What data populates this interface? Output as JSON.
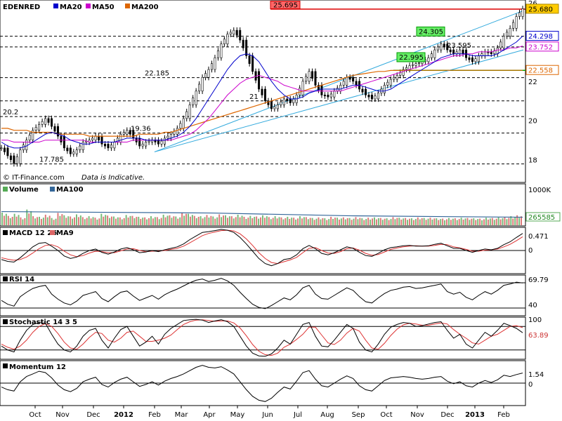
{
  "chart_data": {
    "type": "line",
    "symbol": "EDENRED",
    "legend": [
      {
        "label": "MA20",
        "color": "#0000cc"
      },
      {
        "label": "MA50",
        "color": "#cc00cc"
      },
      {
        "label": "MA200",
        "color": "#dd6600"
      }
    ],
    "source_text": "© IT-Finance.com",
    "disclaimer": "Data is Indicative.",
    "x_labels": [
      "Oct",
      "Nov",
      "Dec",
      "2012",
      "Feb",
      "Mar",
      "Apr",
      "May",
      "Jun",
      "Jul",
      "Aug",
      "Sep",
      "Oct",
      "Nov",
      "Dec",
      "2013",
      "Feb"
    ],
    "price": {
      "ylim": [
        17.2,
        26.0
      ],
      "y_ticks": [
        {
          "label": "26",
          "value": 26
        },
        {
          "label": "22",
          "value": 22
        },
        {
          "label": "20",
          "value": 20
        },
        {
          "label": "18",
          "value": 18
        }
      ],
      "close_series": [
        18.6,
        18.2,
        17.8,
        18.5,
        19.0,
        19.5,
        19.8,
        20.1,
        19.7,
        19.2,
        18.6,
        18.3,
        18.5,
        18.9,
        19.0,
        19.2,
        18.8,
        18.6,
        18.9,
        19.3,
        19.5,
        19.1,
        18.7,
        18.9,
        19.0,
        18.8,
        19.1,
        19.3,
        19.6,
        20.1,
        20.8,
        21.5,
        22.2,
        22.6,
        23.2,
        23.9,
        24.4,
        24.6,
        24.1,
        23.3,
        22.5,
        21.6,
        21.0,
        20.6,
        20.8,
        21.1,
        20.9,
        21.3,
        22.0,
        22.5,
        21.8,
        21.3,
        21.2,
        21.5,
        21.8,
        22.2,
        22.0,
        21.6,
        21.3,
        21.1,
        21.4,
        21.8,
        22.1,
        22.3,
        22.6,
        22.8,
        22.9,
        23.0,
        23.2,
        23.6,
        23.9,
        23.6,
        23.4,
        23.6,
        23.2,
        23.0,
        23.3,
        23.5,
        23.4,
        23.7,
        24.3,
        24.7,
        25.3,
        25.7
      ],
      "ma20_series": [
        18.9,
        18.7,
        18.6,
        18.6,
        18.7,
        18.9,
        19.1,
        19.3,
        19.4,
        19.3,
        19.2,
        19.0,
        18.9,
        18.8,
        18.8,
        18.9,
        18.9,
        18.9,
        18.9,
        19.0,
        19.1,
        19.1,
        19.1,
        19.0,
        19.0,
        19.0,
        19.0,
        19.1,
        19.2,
        19.4,
        19.7,
        20.1,
        20.6,
        21.1,
        21.6,
        22.1,
        22.6,
        23.0,
        23.3,
        23.4,
        23.3,
        23.0,
        22.5,
        22.0,
        21.6,
        21.3,
        21.1,
        21.1,
        21.2,
        21.4,
        21.5,
        21.6,
        21.6,
        21.6,
        21.6,
        21.7,
        21.8,
        21.8,
        21.7,
        21.6,
        21.5,
        21.5,
        21.6,
        21.8,
        22.0,
        22.2,
        22.4,
        22.6,
        22.8,
        23.0,
        23.2,
        23.3,
        23.4,
        23.4,
        23.4,
        23.3,
        23.3,
        23.3,
        23.3,
        23.4,
        23.6,
        23.8,
        24.0,
        24.3
      ],
      "ma50_series": [
        19.0,
        19.0,
        18.9,
        18.9,
        18.9,
        18.9,
        18.9,
        19.0,
        19.0,
        19.0,
        19.0,
        19.0,
        19.0,
        19.0,
        18.9,
        18.9,
        18.9,
        18.9,
        18.9,
        18.9,
        18.9,
        19.0,
        19.0,
        19.0,
        19.0,
        19.0,
        19.0,
        19.0,
        19.1,
        19.2,
        19.3,
        19.5,
        19.8,
        20.1,
        20.5,
        20.9,
        21.3,
        21.6,
        21.9,
        22.1,
        22.2,
        22.3,
        22.2,
        22.1,
        22.0,
        21.8,
        21.7,
        21.6,
        21.5,
        21.5,
        21.5,
        21.5,
        21.5,
        21.5,
        21.5,
        21.6,
        21.7,
        21.8,
        21.9,
        22.0,
        22.1,
        22.2,
        22.3,
        22.4,
        22.5,
        22.6,
        22.7,
        22.8,
        22.9,
        23.0,
        23.1,
        23.2,
        23.3,
        23.3,
        23.4,
        23.4,
        23.5,
        23.5,
        23.5,
        23.6,
        23.6,
        23.7,
        23.7,
        23.8
      ],
      "ma200_series": [
        19.6,
        19.6,
        19.5,
        19.5,
        19.5,
        19.4,
        19.4,
        19.4,
        19.4,
        19.3,
        19.3,
        19.3,
        19.3,
        19.3,
        19.2,
        19.2,
        19.2,
        19.2,
        19.2,
        19.2,
        19.2,
        19.2,
        19.3,
        19.3,
        19.3,
        19.3,
        19.4,
        19.4,
        19.5,
        19.6,
        19.7,
        19.8,
        19.9,
        20.0,
        20.1,
        20.2,
        20.3,
        20.4,
        20.5,
        20.6,
        20.7,
        20.8,
        20.9,
        21.0,
        21.1,
        21.2,
        21.3,
        21.4,
        21.5,
        21.6,
        21.7,
        21.8,
        21.9,
        22.0,
        22.1,
        22.2,
        22.3,
        22.35,
        22.4,
        22.45,
        22.5,
        22.5,
        22.55,
        22.55,
        22.56,
        22.56,
        22.56,
        22.56,
        22.56,
        22.56,
        22.56,
        22.56,
        22.56,
        22.56,
        22.56,
        22.56,
        22.56,
        22.56,
        22.56,
        22.56,
        22.56,
        22.56,
        22.56,
        22.558
      ],
      "levels": [
        {
          "label": "26",
          "value": 25.68,
          "style": "solid-red"
        },
        {
          "label": "24.298",
          "value": 24.298,
          "style": "dashed"
        },
        {
          "label": "23.752",
          "value": 23.752,
          "style": "dashed"
        },
        {
          "label": "22.558",
          "value": 22.558,
          "style": "solid-green"
        },
        {
          "label": "22.185",
          "value": 22.185,
          "style": "dashed"
        },
        {
          "label": "21",
          "value": 21.0,
          "style": "dashed"
        },
        {
          "label": "20.2",
          "value": 20.2,
          "style": "dashed"
        },
        {
          "label": "19.36",
          "value": 19.36,
          "style": "dashed"
        },
        {
          "label": "17.785",
          "value": 17.785,
          "style": "dashed"
        }
      ],
      "annotations": [
        {
          "label": "25.695",
          "value": 25.695,
          "kind": "red-box"
        },
        {
          "label": "24.305",
          "value": 24.305,
          "kind": "green-box"
        },
        {
          "label": "23.595",
          "value": 23.595,
          "kind": "text"
        },
        {
          "label": "22.995",
          "value": 22.995,
          "kind": "green-box"
        },
        {
          "label": "22.185",
          "value": 22.185,
          "kind": "text"
        },
        {
          "label": "21",
          "value": 21.0,
          "kind": "text"
        },
        {
          "label": "20.2",
          "value": 20.2,
          "kind": "text"
        },
        {
          "label": "19.36",
          "value": 19.36,
          "kind": "text"
        },
        {
          "label": "17.785",
          "value": 17.785,
          "kind": "text"
        }
      ],
      "value_tags": [
        {
          "label": "25.680",
          "value": 25.68,
          "color": "#ffcc00",
          "text_color": "#000000"
        },
        {
          "label": "24.298",
          "value": 24.298,
          "color": "#ffffff",
          "text_color": "#0000cc"
        },
        {
          "label": "23.752",
          "value": 23.752,
          "color": "#ffffff",
          "text_color": "#cc00cc"
        },
        {
          "label": "22.558",
          "value": 22.558,
          "color": "#ffffff",
          "text_color": "#dd6600"
        }
      ]
    },
    "volume": {
      "title": "Volume",
      "ma_label": "MA100",
      "y_top_label": "1000K",
      "ylim": [
        0,
        1000000
      ],
      "last_value": "265585",
      "ma_value": 265585,
      "bars": [
        420000,
        310000,
        380000,
        260000,
        520000,
        300000,
        280000,
        350000,
        240000,
        410000,
        330000,
        290000,
        360000,
        270000,
        300000,
        250000,
        380000,
        320000,
        290000,
        260000,
        340000,
        310000,
        280000,
        260000,
        300000,
        270000,
        350000,
        330000,
        290000,
        420000,
        380000,
        310000,
        300000,
        340000,
        290000,
        360000,
        330000,
        300000,
        350000,
        280000,
        310000,
        290000,
        330000,
        270000,
        300000,
        260000,
        280000,
        250000,
        300000,
        270000,
        240000,
        260000,
        230000,
        280000,
        250000,
        260000,
        240000,
        270000,
        230000,
        250000,
        260000,
        240000,
        230000,
        270000,
        250000,
        240000,
        230000,
        260000,
        240000,
        250000,
        230000,
        220000,
        240000,
        230000,
        250000,
        240000,
        230000,
        220000,
        250000,
        240000,
        260000,
        270000,
        300000,
        330000
      ]
    },
    "macd": {
      "title": "MACD 12 26",
      "signal_label": "MA9",
      "ylim": [
        -0.6,
        0.6
      ],
      "y_ticks": [
        {
          "label": "0",
          "value": 0
        }
      ],
      "last_value": "0.471",
      "macd_series": [
        -0.25,
        -0.3,
        -0.32,
        -0.2,
        -0.05,
        0.1,
        0.2,
        0.22,
        0.12,
        0.0,
        -0.15,
        -0.22,
        -0.18,
        -0.08,
        0.0,
        0.04,
        -0.05,
        -0.1,
        -0.04,
        0.04,
        0.08,
        0.02,
        -0.06,
        -0.04,
        0.0,
        -0.03,
        0.02,
        0.06,
        0.1,
        0.18,
        0.3,
        0.4,
        0.5,
        0.52,
        0.55,
        0.58,
        0.56,
        0.5,
        0.36,
        0.18,
        -0.02,
        -0.22,
        -0.36,
        -0.42,
        -0.36,
        -0.25,
        -0.22,
        -0.12,
        0.05,
        0.14,
        0.05,
        -0.08,
        -0.12,
        -0.06,
        0.02,
        0.1,
        0.06,
        -0.05,
        -0.14,
        -0.16,
        -0.08,
        0.02,
        0.08,
        0.1,
        0.13,
        0.14,
        0.12,
        0.12,
        0.13,
        0.17,
        0.2,
        0.13,
        0.06,
        0.06,
        0.0,
        -0.05,
        0.0,
        0.04,
        0.02,
        0.06,
        0.16,
        0.24,
        0.36,
        0.471
      ],
      "signal_series": [
        -0.2,
        -0.24,
        -0.27,
        -0.25,
        -0.18,
        -0.07,
        0.05,
        0.14,
        0.16,
        0.1,
        -0.02,
        -0.12,
        -0.17,
        -0.14,
        -0.07,
        -0.02,
        -0.03,
        -0.06,
        -0.06,
        -0.01,
        0.04,
        0.05,
        0.0,
        -0.03,
        -0.02,
        -0.02,
        0.0,
        0.03,
        0.06,
        0.12,
        0.21,
        0.31,
        0.41,
        0.47,
        0.51,
        0.55,
        0.56,
        0.54,
        0.46,
        0.32,
        0.14,
        -0.06,
        -0.22,
        -0.33,
        -0.36,
        -0.31,
        -0.26,
        -0.19,
        -0.06,
        0.06,
        0.08,
        0.0,
        -0.07,
        -0.08,
        -0.03,
        0.05,
        0.07,
        0.01,
        -0.08,
        -0.13,
        -0.11,
        -0.04,
        0.03,
        0.07,
        0.1,
        0.12,
        0.13,
        0.12,
        0.12,
        0.14,
        0.17,
        0.16,
        0.1,
        0.07,
        0.03,
        -0.02,
        -0.02,
        0.01,
        0.02,
        0.04,
        0.1,
        0.17,
        0.27,
        0.38
      ]
    },
    "rsi": {
      "title": "RSI 14",
      "ylim": [
        20,
        80
      ],
      "y_ticks": [
        {
          "label": "40",
          "value": 40
        }
      ],
      "last_value": "69.79",
      "series": [
        42,
        36,
        33,
        48,
        55,
        61,
        64,
        66,
        52,
        44,
        38,
        35,
        41,
        50,
        53,
        56,
        45,
        40,
        48,
        55,
        57,
        49,
        42,
        46,
        50,
        44,
        51,
        56,
        60,
        65,
        70,
        74,
        76,
        72,
        74,
        77,
        73,
        66,
        55,
        45,
        36,
        31,
        29,
        34,
        40,
        46,
        43,
        51,
        62,
        66,
        52,
        45,
        44,
        50,
        56,
        62,
        58,
        48,
        40,
        38,
        46,
        53,
        58,
        60,
        63,
        64,
        61,
        62,
        64,
        66,
        68,
        56,
        52,
        55,
        47,
        43,
        50,
        56,
        52,
        58,
        66,
        68,
        71,
        69.79
      ]
    },
    "stochastic": {
      "title": "Stochastic 14 3 5",
      "y_top_label": "100",
      "ylim": [
        0,
        100
      ],
      "last_value": "63.89",
      "k_series": [
        30,
        20,
        15,
        45,
        70,
        85,
        90,
        88,
        60,
        35,
        20,
        15,
        30,
        55,
        70,
        75,
        45,
        25,
        50,
        72,
        80,
        55,
        30,
        40,
        55,
        35,
        60,
        75,
        85,
        95,
        97,
        98,
        96,
        90,
        94,
        97,
        92,
        80,
        55,
        30,
        12,
        5,
        4,
        10,
        25,
        45,
        35,
        60,
        85,
        90,
        55,
        30,
        28,
        45,
        65,
        85,
        75,
        40,
        20,
        15,
        35,
        60,
        78,
        85,
        90,
        88,
        80,
        82,
        86,
        90,
        92,
        70,
        50,
        60,
        35,
        25,
        45,
        65,
        55,
        70,
        88,
        82,
        75,
        63.89
      ],
      "d_series": [
        35,
        27,
        22,
        30,
        45,
        65,
        80,
        87,
        80,
        62,
        40,
        25,
        22,
        35,
        52,
        65,
        62,
        45,
        40,
        50,
        65,
        68,
        55,
        42,
        42,
        45,
        50,
        58,
        72,
        85,
        92,
        96,
        97,
        95,
        93,
        94,
        94,
        89,
        76,
        56,
        34,
        17,
        8,
        6,
        12,
        27,
        35,
        47,
        60,
        78,
        78,
        58,
        38,
        34,
        45,
        63,
        75,
        68,
        45,
        25,
        22,
        37,
        57,
        73,
        84,
        88,
        86,
        83,
        83,
        86,
        89,
        86,
        72,
        60,
        50,
        38,
        35,
        45,
        55,
        60,
        70,
        80,
        82,
        77
      ]
    },
    "momentum": {
      "title": "Momentum 12",
      "ylim": [
        -3.2,
        3.2
      ],
      "y_ticks": [
        {
          "label": "0",
          "value": 0
        }
      ],
      "last_value": "1.54",
      "series": [
        -0.6,
        -1.0,
        -1.2,
        0.2,
        1.0,
        1.4,
        1.8,
        1.6,
        0.8,
        -0.3,
        -1.0,
        -1.3,
        -0.8,
        0.2,
        0.6,
        0.9,
        -0.2,
        -0.6,
        0.1,
        0.6,
        0.9,
        0.2,
        -0.5,
        -0.2,
        0.2,
        -0.3,
        0.3,
        0.7,
        1.0,
        1.4,
        1.9,
        2.4,
        2.7,
        2.4,
        2.3,
        2.5,
        2.0,
        1.4,
        0.2,
        -1.0,
        -2.0,
        -2.6,
        -2.8,
        -2.3,
        -1.4,
        -0.6,
        -0.9,
        0.3,
        1.6,
        1.9,
        0.6,
        -0.4,
        -0.6,
        0.0,
        0.6,
        1.1,
        0.7,
        -0.4,
        -1.0,
        -1.2,
        -0.4,
        0.4,
        0.8,
        0.9,
        1.0,
        0.9,
        0.7,
        0.6,
        0.7,
        0.9,
        1.0,
        0.3,
        -0.1,
        0.2,
        -0.4,
        -0.6,
        0.0,
        0.4,
        0.1,
        0.5,
        1.2,
        1.0,
        1.3,
        1.54
      ]
    }
  }
}
